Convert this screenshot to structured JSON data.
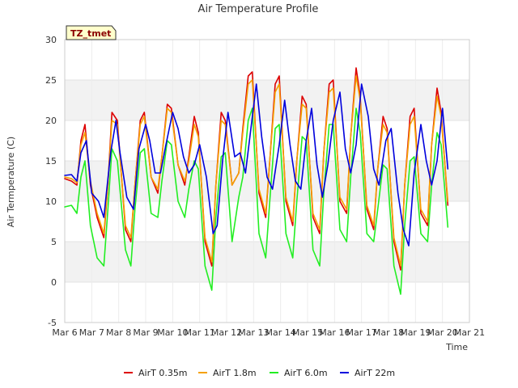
{
  "chart_data": {
    "type": "line",
    "title": "Air Temperature Profile",
    "xlabel": "Time",
    "ylabel": "Air Termperature (C)",
    "annotation": "TZ_tmet",
    "ylim": [
      -5,
      30
    ],
    "yticks": [
      -5,
      0,
      5,
      10,
      15,
      20,
      25,
      30
    ],
    "xlim": [
      6,
      21
    ],
    "xticks": [
      6,
      7,
      8,
      9,
      10,
      11,
      12,
      13,
      14,
      15,
      16,
      17,
      18,
      19,
      20,
      21
    ],
    "xtick_labels": [
      "Mar 6",
      "Mar 7",
      "Mar 8",
      "Mar 9",
      "Mar 10",
      "Mar 11",
      "Mar 12",
      "Mar 13",
      "Mar 14",
      "Mar 15",
      "Mar 16",
      "Mar 17",
      "Mar 18",
      "Mar 19",
      "Mar 20",
      "Mar 21"
    ],
    "grid": true,
    "legend_position": "bottom",
    "x_unit": "day of March",
    "series": [
      {
        "name": "AirT 0.35m",
        "color": "#dd0000",
        "x": [
          6.0,
          6.25,
          6.45,
          6.6,
          6.75,
          6.95,
          7.2,
          7.45,
          7.6,
          7.75,
          7.95,
          8.25,
          8.45,
          8.6,
          8.8,
          8.95,
          9.2,
          9.45,
          9.6,
          9.8,
          9.95,
          10.2,
          10.45,
          10.6,
          10.8,
          10.95,
          11.2,
          11.45,
          11.6,
          11.8,
          11.95,
          12.2,
          12.45,
          12.6,
          12.8,
          12.95,
          13.2,
          13.45,
          13.6,
          13.8,
          13.95,
          14.2,
          14.45,
          14.6,
          14.8,
          14.95,
          15.2,
          15.45,
          15.6,
          15.8,
          15.95,
          16.2,
          16.45,
          16.6,
          16.8,
          16.95,
          17.2,
          17.45,
          17.6,
          17.8,
          17.95,
          18.2,
          18.45,
          18.6,
          18.8,
          18.95,
          19.2,
          19.45,
          19.6,
          19.8,
          19.95,
          20.2
        ],
        "y": [
          12.8,
          12.5,
          12.0,
          17.5,
          19.5,
          12.0,
          8.0,
          5.5,
          12.0,
          21.0,
          20.0,
          6.5,
          5.0,
          12.0,
          20.0,
          21.0,
          13.0,
          11.0,
          15.5,
          22.0,
          21.5,
          14.5,
          12.0,
          15.5,
          20.5,
          18.5,
          5.0,
          2.0,
          12.0,
          21.0,
          20.0,
          12.0,
          13.5,
          19.0,
          25.5,
          26.0,
          11.0,
          8.0,
          15.0,
          24.5,
          25.5,
          10.0,
          7.0,
          15.0,
          23.0,
          22.0,
          8.0,
          6.0,
          16.0,
          24.5,
          25.0,
          10.0,
          8.5,
          18.0,
          26.5,
          23.0,
          9.0,
          6.5,
          14.0,
          20.5,
          19.0,
          5.0,
          1.5,
          12.0,
          20.5,
          21.5,
          8.5,
          7.0,
          17.0,
          24.0,
          21.0,
          9.5
        ]
      },
      {
        "name": "AirT 1.8m",
        "color": "#f5a000",
        "x": [
          6.0,
          6.25,
          6.45,
          6.6,
          6.75,
          6.95,
          7.2,
          7.45,
          7.6,
          7.75,
          7.95,
          8.25,
          8.45,
          8.6,
          8.8,
          8.95,
          9.2,
          9.45,
          9.6,
          9.8,
          9.95,
          10.2,
          10.45,
          10.6,
          10.8,
          10.95,
          11.2,
          11.45,
          11.6,
          11.8,
          11.95,
          12.2,
          12.45,
          12.6,
          12.8,
          12.95,
          13.2,
          13.45,
          13.6,
          13.8,
          13.95,
          14.2,
          14.45,
          14.6,
          14.8,
          14.95,
          15.2,
          15.45,
          15.6,
          15.8,
          15.95,
          16.2,
          16.45,
          16.6,
          16.8,
          16.95,
          17.2,
          17.45,
          17.6,
          17.8,
          17.95,
          18.2,
          18.45,
          18.6,
          18.8,
          18.95,
          19.2,
          19.45,
          19.6,
          19.8,
          19.95,
          20.2
        ],
        "y": [
          13.0,
          12.8,
          12.3,
          17.0,
          18.5,
          12.5,
          8.5,
          6.0,
          12.0,
          20.0,
          19.5,
          7.0,
          5.5,
          12.0,
          19.5,
          20.5,
          13.0,
          11.5,
          15.5,
          21.5,
          21.0,
          14.5,
          12.5,
          15.0,
          19.5,
          18.0,
          5.5,
          2.5,
          12.0,
          20.0,
          19.5,
          12.0,
          13.5,
          18.5,
          24.5,
          25.0,
          11.5,
          8.5,
          15.0,
          23.5,
          24.5,
          10.5,
          7.5,
          15.0,
          22.0,
          21.5,
          8.5,
          6.5,
          16.0,
          23.5,
          24.0,
          10.5,
          9.0,
          18.0,
          25.5,
          22.5,
          9.5,
          7.0,
          14.0,
          19.5,
          18.5,
          5.5,
          2.0,
          12.0,
          19.5,
          20.5,
          9.0,
          7.5,
          17.0,
          23.0,
          20.5,
          10.0
        ]
      },
      {
        "name": "AirT 6.0m",
        "color": "#22ee22",
        "x": [
          6.0,
          6.25,
          6.45,
          6.6,
          6.75,
          6.95,
          7.2,
          7.45,
          7.6,
          7.75,
          7.95,
          8.25,
          8.45,
          8.6,
          8.8,
          8.95,
          9.2,
          9.45,
          9.6,
          9.8,
          9.95,
          10.2,
          10.45,
          10.6,
          10.8,
          10.95,
          11.2,
          11.45,
          11.6,
          11.8,
          11.95,
          12.2,
          12.45,
          12.6,
          12.8,
          12.95,
          13.2,
          13.45,
          13.6,
          13.8,
          13.95,
          14.2,
          14.45,
          14.6,
          14.8,
          14.95,
          15.2,
          15.45,
          15.6,
          15.8,
          15.95,
          16.2,
          16.45,
          16.6,
          16.8,
          16.95,
          17.2,
          17.45,
          17.6,
          17.8,
          17.95,
          18.2,
          18.45,
          18.6,
          18.8,
          18.95,
          19.2,
          19.45,
          19.6,
          19.8,
          19.95,
          20.2
        ],
        "y": [
          9.3,
          9.5,
          8.5,
          13.0,
          15.0,
          7.0,
          3.0,
          2.0,
          9.0,
          16.5,
          15.0,
          4.0,
          2.0,
          9.0,
          16.0,
          16.5,
          8.5,
          8.0,
          12.5,
          17.5,
          17.0,
          10.0,
          8.0,
          11.5,
          15.0,
          14.0,
          2.0,
          -1.0,
          8.0,
          15.5,
          16.0,
          5.0,
          10.5,
          13.0,
          20.0,
          21.5,
          6.0,
          3.0,
          10.0,
          19.0,
          19.5,
          6.0,
          3.0,
          10.0,
          18.0,
          17.5,
          4.0,
          2.0,
          11.0,
          19.5,
          19.5,
          6.5,
          5.0,
          13.0,
          21.5,
          18.5,
          6.0,
          5.0,
          9.0,
          14.5,
          14.0,
          2.0,
          -1.5,
          7.0,
          15.0,
          15.5,
          6.0,
          5.0,
          12.0,
          18.5,
          17.0,
          6.8
        ]
      },
      {
        "name": "AirT 22m",
        "color": "#0000dd",
        "x": [
          6.0,
          6.25,
          6.45,
          6.6,
          6.8,
          7.0,
          7.25,
          7.45,
          7.7,
          7.9,
          8.05,
          8.3,
          8.55,
          8.75,
          9.0,
          9.15,
          9.35,
          9.55,
          9.75,
          10.0,
          10.2,
          10.4,
          10.6,
          10.8,
          11.0,
          11.25,
          11.5,
          11.65,
          11.85,
          12.05,
          12.3,
          12.5,
          12.7,
          12.9,
          13.1,
          13.3,
          13.5,
          13.7,
          13.95,
          14.15,
          14.35,
          14.55,
          14.75,
          14.95,
          15.15,
          15.35,
          15.55,
          15.75,
          15.95,
          16.2,
          16.4,
          16.6,
          16.8,
          17.0,
          17.25,
          17.45,
          17.65,
          17.9,
          18.1,
          18.35,
          18.55,
          18.75,
          18.95,
          19.2,
          19.4,
          19.6,
          19.8,
          20.0,
          20.2
        ],
        "y": [
          13.2,
          13.3,
          12.5,
          16.0,
          17.5,
          11.0,
          10.0,
          8.0,
          16.0,
          20.0,
          16.0,
          10.5,
          9.0,
          16.5,
          19.5,
          17.5,
          13.5,
          13.5,
          17.0,
          21.0,
          19.0,
          15.5,
          13.5,
          14.5,
          17.0,
          13.0,
          6.0,
          7.0,
          15.0,
          21.0,
          15.5,
          16.0,
          13.5,
          19.0,
          24.5,
          18.0,
          13.0,
          11.5,
          17.0,
          22.5,
          17.0,
          12.5,
          11.5,
          17.5,
          21.5,
          14.5,
          10.5,
          14.5,
          20.0,
          23.5,
          16.5,
          13.5,
          17.0,
          24.5,
          20.5,
          14.0,
          12.0,
          17.5,
          19.0,
          11.0,
          6.5,
          4.5,
          13.5,
          19.5,
          15.0,
          12.0,
          15.0,
          21.5,
          14.0
        ]
      }
    ]
  }
}
